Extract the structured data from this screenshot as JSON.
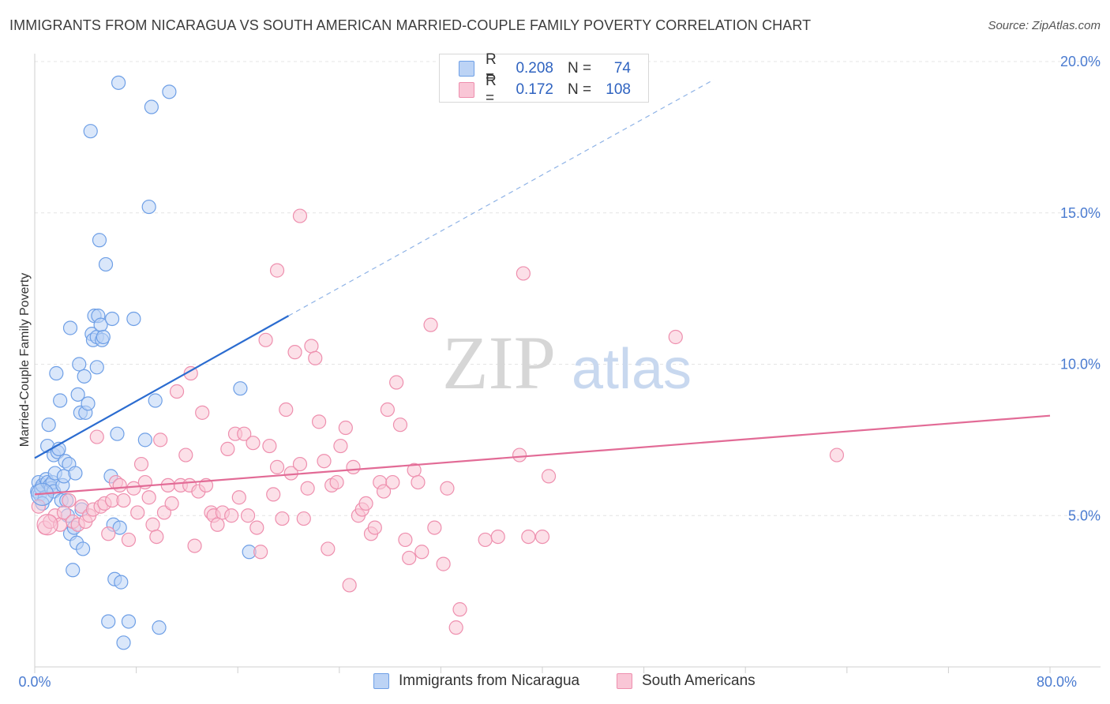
{
  "title": "IMMIGRANTS FROM NICARAGUA VS SOUTH AMERICAN MARRIED-COUPLE FAMILY POVERTY CORRELATION CHART",
  "source": "Source: ZipAtlas.com",
  "watermark": {
    "zip": "ZIP",
    "atlas": "atlas"
  },
  "legend": [
    {
      "r_label": "R =",
      "r_value": "0.208",
      "n_label": "N =",
      "n_value": "74",
      "fill": "#bcd3f5",
      "stroke": "#6e9fe6"
    },
    {
      "r_label": "R =",
      "r_value": "0.172",
      "n_label": "N =",
      "n_value": "108",
      "fill": "#f9c6d6",
      "stroke": "#ee8fae"
    }
  ],
  "chart_data": {
    "type": "scatter",
    "title": "IMMIGRANTS FROM NICARAGUA VS SOUTH AMERICAN MARRIED-COUPLE FAMILY POVERTY CORRELATION CHART",
    "xlabel": "",
    "ylabel": "Married-Couple Family Poverty",
    "xlim": [
      0,
      80
    ],
    "ylim": [
      0,
      20
    ],
    "x_tick_labels": [
      "0.0%",
      "80.0%"
    ],
    "y_ticks": [
      5,
      10,
      15,
      20
    ],
    "y_tick_labels": [
      "5.0%",
      "10.0%",
      "15.0%",
      "20.0%"
    ],
    "grid": true,
    "legend_position": "top-center",
    "series": [
      {
        "name": "Immigrants from Nicaragua",
        "color": "#6e9fe6",
        "fill": "#bcd3f5",
        "trend": {
          "x0": 0,
          "y0": 6.9,
          "x1": 20,
          "y1": 11.6,
          "extend_to_x": 53.5,
          "extend_y": 19.4,
          "color": "#2b6cd0"
        },
        "points": [
          [
            0.2,
            5.8
          ],
          [
            0.3,
            6.1
          ],
          [
            0.4,
            5.7
          ],
          [
            0.5,
            5.9
          ],
          [
            0.6,
            6.0
          ],
          [
            0.8,
            5.6
          ],
          [
            0.9,
            6.2
          ],
          [
            1.0,
            7.3
          ],
          [
            1.0,
            6.1
          ],
          [
            1.1,
            8.0
          ],
          [
            1.2,
            6.0
          ],
          [
            1.3,
            5.9
          ],
          [
            1.4,
            6.1
          ],
          [
            1.5,
            5.8
          ],
          [
            1.5,
            7.0
          ],
          [
            1.6,
            6.4
          ],
          [
            1.7,
            9.7
          ],
          [
            1.8,
            7.1
          ],
          [
            1.9,
            7.2
          ],
          [
            2.0,
            8.8
          ],
          [
            2.1,
            5.5
          ],
          [
            2.2,
            6.0
          ],
          [
            2.3,
            6.3
          ],
          [
            2.4,
            6.8
          ],
          [
            2.5,
            5.5
          ],
          [
            2.6,
            5.0
          ],
          [
            2.7,
            6.7
          ],
          [
            2.8,
            11.2
          ],
          [
            2.8,
            4.4
          ],
          [
            3.0,
            3.2
          ],
          [
            3.1,
            4.6
          ],
          [
            3.2,
            6.4
          ],
          [
            3.3,
            4.1
          ],
          [
            3.4,
            9.0
          ],
          [
            3.5,
            10.0
          ],
          [
            3.6,
            8.4
          ],
          [
            3.7,
            5.2
          ],
          [
            3.8,
            3.9
          ],
          [
            3.9,
            9.6
          ],
          [
            4.0,
            8.4
          ],
          [
            4.2,
            8.7
          ],
          [
            4.4,
            17.7
          ],
          [
            4.5,
            11.0
          ],
          [
            4.6,
            10.8
          ],
          [
            4.7,
            11.6
          ],
          [
            4.9,
            9.9
          ],
          [
            4.9,
            10.9
          ],
          [
            5.0,
            11.6
          ],
          [
            5.1,
            14.1
          ],
          [
            5.2,
            11.3
          ],
          [
            5.3,
            10.8
          ],
          [
            5.4,
            10.9
          ],
          [
            5.6,
            13.3
          ],
          [
            5.8,
            1.5
          ],
          [
            6.0,
            6.3
          ],
          [
            6.1,
            11.5
          ],
          [
            6.2,
            4.7
          ],
          [
            6.3,
            2.9
          ],
          [
            6.5,
            7.7
          ],
          [
            6.7,
            4.6
          ],
          [
            6.6,
            19.3
          ],
          [
            6.8,
            2.8
          ],
          [
            7.0,
            0.8
          ],
          [
            7.4,
            1.5
          ],
          [
            7.8,
            11.5
          ],
          [
            8.7,
            7.5
          ],
          [
            9.2,
            18.5
          ],
          [
            9.0,
            15.2
          ],
          [
            9.5,
            8.8
          ],
          [
            9.8,
            1.3
          ],
          [
            10.6,
            19.0
          ],
          [
            16.2,
            9.2
          ],
          [
            16.9,
            3.8
          ],
          [
            0.6,
            5.4
          ]
        ]
      },
      {
        "name": "South Americans",
        "color": "#ee8fae",
        "fill": "#f9c6d6",
        "trend": {
          "x0": 0,
          "y0": 5.7,
          "x1": 80,
          "y1": 8.3,
          "color": "#e26b96"
        },
        "points": [
          [
            0.3,
            5.3
          ],
          [
            0.8,
            4.6
          ],
          [
            1.2,
            4.8
          ],
          [
            1.6,
            5.0
          ],
          [
            2.0,
            4.7
          ],
          [
            2.3,
            5.1
          ],
          [
            2.7,
            5.5
          ],
          [
            3.0,
            4.8
          ],
          [
            3.4,
            4.7
          ],
          [
            3.7,
            5.3
          ],
          [
            4.0,
            4.8
          ],
          [
            4.3,
            5.0
          ],
          [
            4.6,
            5.2
          ],
          [
            4.9,
            7.6
          ],
          [
            5.2,
            5.3
          ],
          [
            5.5,
            5.4
          ],
          [
            5.8,
            4.4
          ],
          [
            6.1,
            5.5
          ],
          [
            6.4,
            6.1
          ],
          [
            6.7,
            6.0
          ],
          [
            7.0,
            5.5
          ],
          [
            7.4,
            4.2
          ],
          [
            7.8,
            5.9
          ],
          [
            8.1,
            5.1
          ],
          [
            8.4,
            6.7
          ],
          [
            8.7,
            6.1
          ],
          [
            9.0,
            5.6
          ],
          [
            9.3,
            4.7
          ],
          [
            9.6,
            4.3
          ],
          [
            9.9,
            7.5
          ],
          [
            10.2,
            5.1
          ],
          [
            10.5,
            6.0
          ],
          [
            10.8,
            5.4
          ],
          [
            11.2,
            9.1
          ],
          [
            11.5,
            6.0
          ],
          [
            11.9,
            7.0
          ],
          [
            12.2,
            6.0
          ],
          [
            12.6,
            4.0
          ],
          [
            12.3,
            9.7
          ],
          [
            12.9,
            5.8
          ],
          [
            13.2,
            8.4
          ],
          [
            13.5,
            6.0
          ],
          [
            13.9,
            5.1
          ],
          [
            14.1,
            5.0
          ],
          [
            14.4,
            4.7
          ],
          [
            14.8,
            5.1
          ],
          [
            15.2,
            7.2
          ],
          [
            15.5,
            5.0
          ],
          [
            15.8,
            7.7
          ],
          [
            16.1,
            5.6
          ],
          [
            16.5,
            7.7
          ],
          [
            16.8,
            5.0
          ],
          [
            17.2,
            7.4
          ],
          [
            17.5,
            4.6
          ],
          [
            17.8,
            3.8
          ],
          [
            18.2,
            10.8
          ],
          [
            18.5,
            7.3
          ],
          [
            18.8,
            5.7
          ],
          [
            19.1,
            6.6
          ],
          [
            19.1,
            13.1
          ],
          [
            19.5,
            4.9
          ],
          [
            19.8,
            8.5
          ],
          [
            20.2,
            6.4
          ],
          [
            20.5,
            10.4
          ],
          [
            20.9,
            6.7
          ],
          [
            20.9,
            14.9
          ],
          [
            21.2,
            4.9
          ],
          [
            21.5,
            5.9
          ],
          [
            21.8,
            10.6
          ],
          [
            22.1,
            10.2
          ],
          [
            22.4,
            8.1
          ],
          [
            22.8,
            6.8
          ],
          [
            23.1,
            3.9
          ],
          [
            23.4,
            6.0
          ],
          [
            23.8,
            6.1
          ],
          [
            24.1,
            7.3
          ],
          [
            24.5,
            7.9
          ],
          [
            24.8,
            2.7
          ],
          [
            25.1,
            6.6
          ],
          [
            25.5,
            5.0
          ],
          [
            25.8,
            5.2
          ],
          [
            26.1,
            5.4
          ],
          [
            26.5,
            4.4
          ],
          [
            26.8,
            4.6
          ],
          [
            27.2,
            6.1
          ],
          [
            27.5,
            5.8
          ],
          [
            27.8,
            8.5
          ],
          [
            28.2,
            6.1
          ],
          [
            28.5,
            9.4
          ],
          [
            28.8,
            8.0
          ],
          [
            29.2,
            4.2
          ],
          [
            29.5,
            3.6
          ],
          [
            29.9,
            6.5
          ],
          [
            30.2,
            6.1
          ],
          [
            30.5,
            3.8
          ],
          [
            31.2,
            11.3
          ],
          [
            31.5,
            4.6
          ],
          [
            32.2,
            3.4
          ],
          [
            32.5,
            5.9
          ],
          [
            33.2,
            1.3
          ],
          [
            33.5,
            1.9
          ],
          [
            35.5,
            4.2
          ],
          [
            36.5,
            4.3
          ],
          [
            38.5,
            13.0
          ],
          [
            38.2,
            7.0
          ],
          [
            40.0,
            4.3
          ],
          [
            40.5,
            6.3
          ],
          [
            50.5,
            10.9
          ]
        ]
      }
    ],
    "extra_points": [
      {
        "series": 1,
        "x": 63.2,
        "y": 7.0
      },
      {
        "series": 1,
        "x": 38.9,
        "y": 4.3
      }
    ]
  },
  "bottom_legend": [
    {
      "label": "Immigrants from Nicaragua",
      "fill": "#bcd3f5",
      "stroke": "#6e9fe6"
    },
    {
      "label": "South Americans",
      "fill": "#f9c6d6",
      "stroke": "#ee8fae"
    }
  ]
}
